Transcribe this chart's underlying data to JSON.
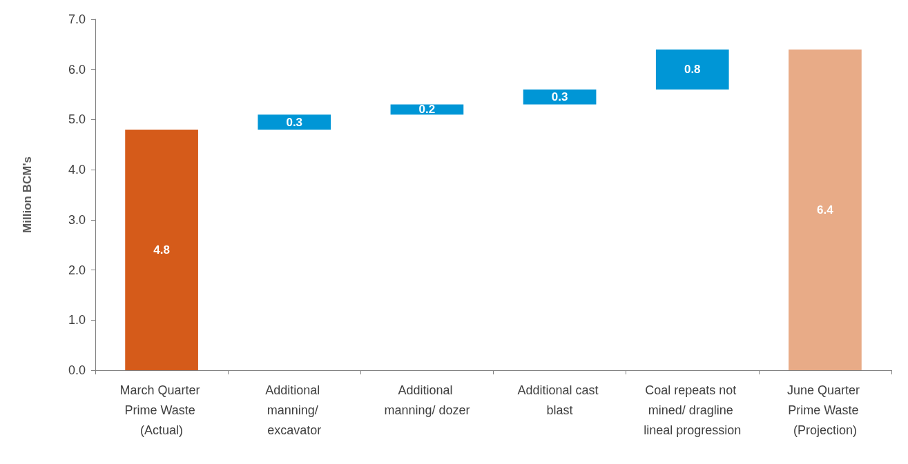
{
  "chart_data": {
    "type": "bar",
    "ylabel": "Million BCM's",
    "categories": [
      "March Quarter Prime Waste (Actual)",
      "Additional manning/ excavator",
      "Additional manning/ dozer",
      "Additional cast blast",
      "Coal repeats not mined/ dragline lineal progression",
      "June Quarter Prime Waste (Projection)"
    ],
    "values": [
      4.8,
      0.3,
      0.2,
      0.3,
      0.8,
      6.4
    ],
    "base": [
      0,
      4.8,
      5.1,
      5.3,
      5.6,
      0
    ],
    "colors": [
      "#d55b1a",
      "#0096d6",
      "#0096d6",
      "#0096d6",
      "#0096d6",
      "#e8ab87"
    ],
    "data_labels": true,
    "ylim": [
      0,
      7
    ],
    "yticks": [
      {
        "value": 0,
        "label": "0.0"
      },
      {
        "value": 1,
        "label": "1.0"
      },
      {
        "value": 2,
        "label": "2.0"
      },
      {
        "value": 3,
        "label": "3.0"
      },
      {
        "value": 4,
        "label": "4.0"
      },
      {
        "value": 5,
        "label": "5.0"
      },
      {
        "value": 6,
        "label": "6.0"
      },
      {
        "value": 7,
        "label": "7.0"
      }
    ],
    "grid": false
  }
}
